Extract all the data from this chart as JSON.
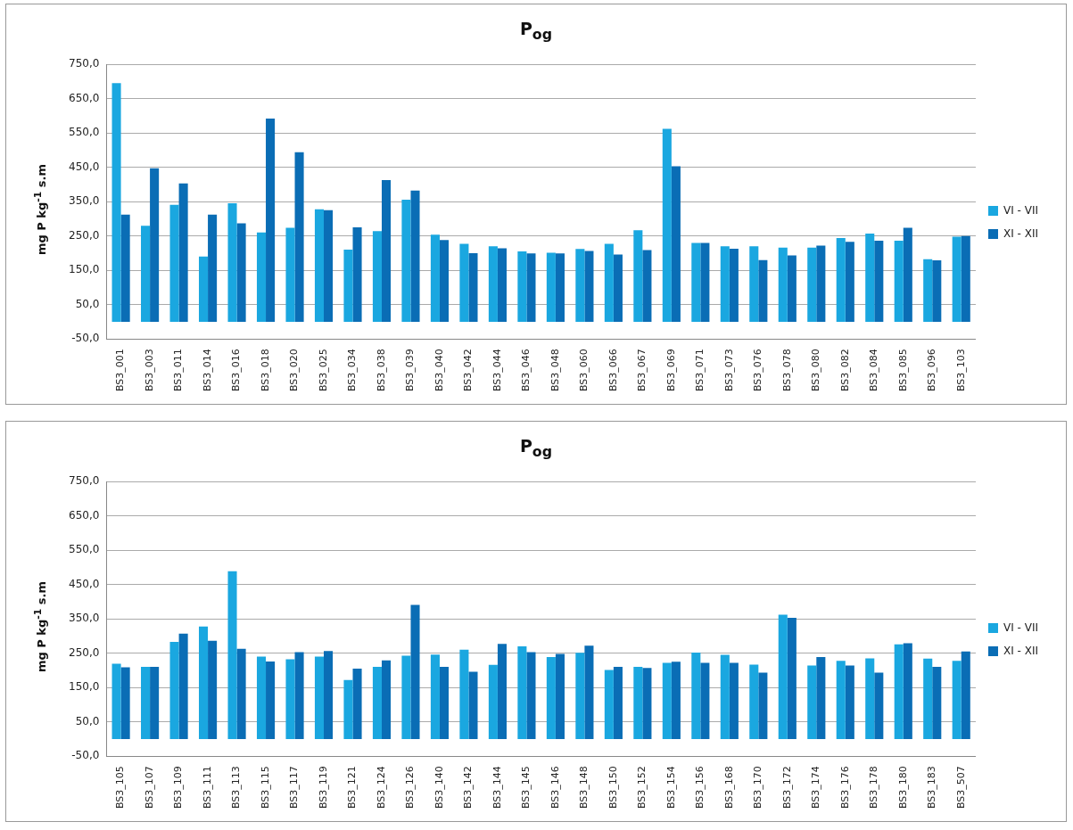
{
  "chart_data": [
    {
      "type": "bar",
      "title": "P$_{og}$",
      "ylabel": "mg P kg$^{-1}$ s.m",
      "categories": [
        "BS3_001",
        "BS3_003",
        "BS3_011",
        "BS3_014",
        "BS3_016",
        "BS3_018",
        "BS3_020",
        "BS3_025",
        "BS3_034",
        "BS3_038",
        "BS3_039",
        "BS3_040",
        "BS3_042",
        "BS3_044",
        "BS3_046",
        "BS3_048",
        "BS3_060",
        "BS3_066",
        "BS3_067",
        "BS3_069",
        "BS3_071",
        "BS3_073",
        "BS3_076",
        "BS3_078",
        "BS3_080",
        "BS3_082",
        "BS3_084",
        "BS3_085",
        "BS3_096",
        "BS3_103"
      ],
      "series": [
        {
          "name": "VI - VII",
          "color": "#1aa7e0",
          "values": [
            695,
            280,
            341,
            190,
            345,
            260,
            274,
            328,
            210,
            264,
            356,
            254,
            227,
            220,
            205,
            201,
            212,
            227,
            267,
            562,
            230,
            220,
            220,
            216,
            216,
            244,
            257,
            236,
            182,
            248
          ]
        },
        {
          "name": "XI - XII",
          "color": "#0a6db5",
          "values": [
            312,
            447,
            403,
            312,
            287,
            592,
            494,
            325,
            275,
            413,
            382,
            238,
            200,
            214,
            199,
            199,
            206,
            196,
            209,
            453,
            230,
            213,
            180,
            193,
            222,
            233,
            236,
            274,
            179,
            250
          ]
        }
      ],
      "ylim": [
        -50,
        750
      ],
      "yticks": [
        {
          "value": -50,
          "label": "-50,0"
        },
        {
          "value": 50,
          "label": "50,0"
        },
        {
          "value": 150,
          "label": "150,0"
        },
        {
          "value": 250,
          "label": "250,0"
        },
        {
          "value": 350,
          "label": "350,0"
        },
        {
          "value": 450,
          "label": "450,0"
        },
        {
          "value": 550,
          "label": "550,0"
        },
        {
          "value": 650,
          "label": "650,0"
        },
        {
          "value": 750,
          "label": "750,0"
        }
      ],
      "grid": "y",
      "legend": "right"
    },
    {
      "type": "bar",
      "title": "P$_{og}$",
      "ylabel": "mg P kg$^{-1}$ s.m",
      "categories": [
        "BS3_105",
        "BS3_107",
        "BS3_109",
        "BS3_111",
        "BS3_113",
        "BS3_115",
        "BS3_117",
        "BS3_119",
        "BS3_121",
        "BS3_124",
        "BS3_126",
        "BS3_140",
        "BS3_142",
        "BS3_144",
        "BS3_145",
        "BS3_146",
        "BS3_148",
        "BS3_150",
        "BS3_152",
        "BS3_154",
        "BS3_156",
        "BS3_168",
        "BS3_170",
        "BS3_172",
        "BS3_174",
        "BS3_176",
        "BS3_178",
        "BS3_180",
        "BS3_183",
        "BS3_507"
      ],
      "series": [
        {
          "name": "VI - VII",
          "color": "#1aa7e0",
          "values": [
            219,
            210,
            283,
            328,
            489,
            240,
            232,
            240,
            172,
            210,
            243,
            246,
            260,
            216,
            270,
            239,
            251,
            201,
            210,
            222,
            252,
            245,
            217,
            362,
            214,
            228,
            235,
            276,
            234,
            228
          ]
        },
        {
          "name": "XI - XII",
          "color": "#0a6db5",
          "values": [
            209,
            210,
            307,
            286,
            263,
            226,
            253,
            256,
            205,
            229,
            391,
            210,
            196,
            277,
            253,
            248,
            272,
            210,
            207,
            225,
            222,
            222,
            193,
            353,
            239,
            214,
            193,
            279,
            210,
            255
          ]
        }
      ],
      "ylim": [
        -50,
        750
      ],
      "yticks": [
        {
          "value": -50,
          "label": "-50,0"
        },
        {
          "value": 50,
          "label": "50,0"
        },
        {
          "value": 150,
          "label": "150,0"
        },
        {
          "value": 250,
          "label": "250,0"
        },
        {
          "value": 350,
          "label": "350,0"
        },
        {
          "value": 450,
          "label": "450,0"
        },
        {
          "value": 550,
          "label": "550,0"
        },
        {
          "value": 650,
          "label": "650,0"
        },
        {
          "value": 750,
          "label": "750,0"
        }
      ],
      "grid": "y",
      "legend": "right"
    }
  ]
}
